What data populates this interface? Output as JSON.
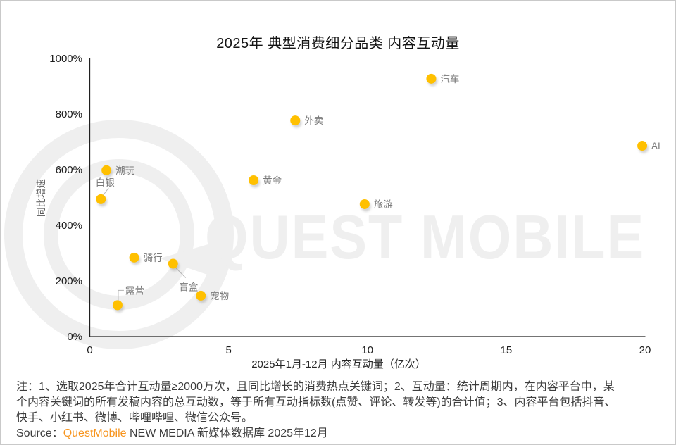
{
  "title": "2025年 典型消费细分品类 内容互动量",
  "watermark": "QUEST MOBILE",
  "chart_data": {
    "type": "scatter",
    "title": "2025年 典型消费细分品类 内容互动量",
    "xlabel": "2025年1月-12月 内容互动量（亿次）",
    "ylabel": "同比增速",
    "xlim": [
      0,
      20
    ],
    "ylim_pct": [
      0,
      1000
    ],
    "x_ticks": [
      "0",
      "5",
      "10",
      "15",
      "20"
    ],
    "y_ticks": [
      "0%",
      "200%",
      "400%",
      "600%",
      "800%",
      "1000%"
    ],
    "grid": false,
    "legend": "none",
    "point_color": "#FFC000",
    "points": [
      {
        "label": "潮玩",
        "x": 0.6,
        "y_pct": 598,
        "label_pos": "right"
      },
      {
        "label": "白银",
        "x": 0.4,
        "y_pct": 494,
        "label_pos": "above"
      },
      {
        "label": "露营",
        "x": 1.0,
        "y_pct": 113,
        "label_pos": "elbow-above"
      },
      {
        "label": "骑行",
        "x": 1.6,
        "y_pct": 284,
        "label_pos": "right"
      },
      {
        "label": "盲盒",
        "x": 3.0,
        "y_pct": 262,
        "label_pos": "below"
      },
      {
        "label": "宠物",
        "x": 4.0,
        "y_pct": 147,
        "label_pos": "right"
      },
      {
        "label": "黄金",
        "x": 5.9,
        "y_pct": 562,
        "label_pos": "right"
      },
      {
        "label": "外卖",
        "x": 7.4,
        "y_pct": 777,
        "label_pos": "right"
      },
      {
        "label": "旅游",
        "x": 9.9,
        "y_pct": 476,
        "label_pos": "right"
      },
      {
        "label": "汽车",
        "x": 12.3,
        "y_pct": 927,
        "label_pos": "right"
      },
      {
        "label": "AI",
        "x": 19.9,
        "y_pct": 686,
        "label_pos": "right"
      }
    ]
  },
  "notes": {
    "lines": [
      "注：1、选取2025年合计互动量≥2000万次，且同比增长的消费热点关键词；2、互动量：统计周期内，在内容平台中，某",
      "个内容关键词的所有发稿内容的总互动数，等于所有互动指标数(点赞、评论、转发等)的合计值；3、内容平台包括抖音、",
      "快手、小红书、微博、哔哩哔哩、微信公众号。"
    ]
  },
  "source": {
    "prefix": "Source：",
    "brand": "QuestMobile",
    "suffix": " NEW MEDIA 新媒体数据库 2025年12月",
    "brand_color": "#F7941D"
  },
  "colors": {
    "point": "#FFC000",
    "point_label": "#7a7a7a",
    "axis": "#202020",
    "watermark": "#efefef",
    "note_text": "#3d3d3d"
  }
}
